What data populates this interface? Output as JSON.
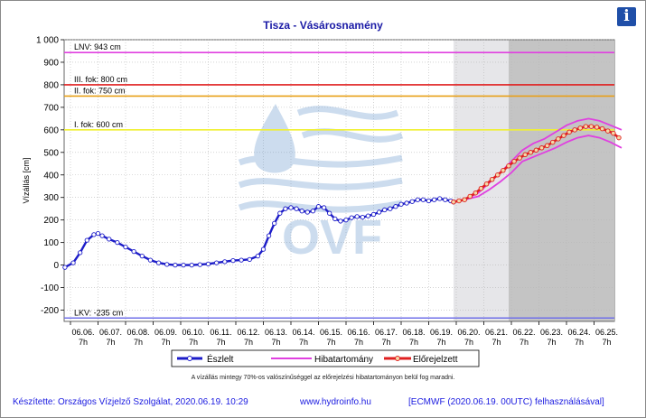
{
  "header": {
    "title": "Tisza - Vásárosnamény",
    "info_label": "i"
  },
  "footer": {
    "author": "Készítette: Országos Vízjelző Szolgálat, 2020.06.19. 10:29",
    "url": "www.hydroinfo.hu",
    "source": "[ECMWF (2020.06.19. 00UTC) felhasználásával]"
  },
  "chart_data": {
    "type": "line",
    "title": "Tisza - Vásárosnamény",
    "ylabel": "Vízállás [cm]",
    "ylim": [
      -250,
      1000
    ],
    "yticks": [
      "1 000",
      "900",
      "800",
      "700",
      "600",
      "500",
      "400",
      "300",
      "200",
      "100",
      "0",
      "-100",
      "-200"
    ],
    "ytick_values": [
      1000,
      900,
      800,
      700,
      600,
      500,
      400,
      300,
      200,
      100,
      0,
      -100,
      -200
    ],
    "xlim": [
      0,
      20
    ],
    "xticks": [
      {
        "date": "06.06.",
        "hour": "7h"
      },
      {
        "date": "06.07.",
        "hour": "7h"
      },
      {
        "date": "06.08.",
        "hour": "7h"
      },
      {
        "date": "06.09.",
        "hour": "7h"
      },
      {
        "date": "06.10.",
        "hour": "7h"
      },
      {
        "date": "06.11.",
        "hour": "7h"
      },
      {
        "date": "06.12.",
        "hour": "7h"
      },
      {
        "date": "06.13.",
        "hour": "7h"
      },
      {
        "date": "06.14.",
        "hour": "7h"
      },
      {
        "date": "06.15.",
        "hour": "7h"
      },
      {
        "date": "06.16.",
        "hour": "7h"
      },
      {
        "date": "06.17.",
        "hour": "7h"
      },
      {
        "date": "06.18.",
        "hour": "7h"
      },
      {
        "date": "06.19.",
        "hour": "7h"
      },
      {
        "date": "06.20.",
        "hour": "7h"
      },
      {
        "date": "06.21.",
        "hour": "7h"
      },
      {
        "date": "06.22.",
        "hour": "7h"
      },
      {
        "date": "06.23.",
        "hour": "7h"
      },
      {
        "date": "06.24.",
        "hour": "7h"
      },
      {
        "date": "06.25.",
        "hour": "7h"
      }
    ],
    "shaded_regions": [
      {
        "from": 13.9,
        "to": 15.9,
        "color": "#e6e6e9"
      },
      {
        "from": 15.9,
        "to": 20.3,
        "color": "#c4c4c4"
      }
    ],
    "thresholds": [
      {
        "label": "LNV: 943 cm",
        "value": 943,
        "color": "#e040e0"
      },
      {
        "label": "III. fok: 800 cm",
        "value": 800,
        "color": "#e02020"
      },
      {
        "label": "II. fok: 750 cm",
        "value": 750,
        "color": "#e8a018"
      },
      {
        "label": "I. fok: 600 cm",
        "value": 600,
        "color": "#f0f030"
      },
      {
        "label": "LKV: -235 cm",
        "value": -235,
        "color": "#7070e8"
      }
    ],
    "series": [
      {
        "name": "Észlelt",
        "color": "#1c1cc8",
        "x": [
          -0.2,
          0.1,
          0.35,
          0.6,
          0.85,
          1.0,
          1.15,
          1.4,
          1.7,
          2.0,
          2.3,
          2.6,
          2.9,
          3.2,
          3.5,
          3.8,
          4.1,
          4.4,
          4.7,
          5.0,
          5.3,
          5.6,
          5.9,
          6.2,
          6.5,
          6.8,
          7.0,
          7.2,
          7.4,
          7.6,
          7.8,
          8.0,
          8.2,
          8.4,
          8.6,
          8.8,
          9.0,
          9.2,
          9.4,
          9.6,
          9.8,
          10.0,
          10.2,
          10.4,
          10.6,
          10.8,
          11.0,
          11.2,
          11.4,
          11.6,
          11.8,
          12.0,
          12.2,
          12.4,
          12.6,
          12.8,
          13.0,
          13.2,
          13.4,
          13.6,
          13.8,
          13.9
        ],
        "y": [
          -10,
          10,
          55,
          110,
          135,
          140,
          130,
          115,
          100,
          80,
          60,
          40,
          22,
          10,
          3,
          0,
          0,
          0,
          2,
          5,
          10,
          15,
          20,
          22,
          25,
          40,
          70,
          130,
          185,
          230,
          250,
          255,
          250,
          240,
          235,
          240,
          260,
          255,
          230,
          205,
          195,
          200,
          210,
          215,
          212,
          218,
          225,
          235,
          245,
          250,
          260,
          270,
          275,
          282,
          290,
          290,
          285,
          290,
          295,
          290,
          285,
          280
        ]
      },
      {
        "name": "Hibatartomány",
        "color": "#e040e0",
        "x": [
          13.9,
          14.3,
          14.8,
          15.2,
          15.6,
          16.0,
          16.4,
          16.8,
          17.2,
          17.6,
          18.0,
          18.4,
          18.8,
          19.2,
          19.6,
          20.0
        ],
        "y_upper": [
          282,
          290,
          320,
          365,
          410,
          460,
          510,
          540,
          560,
          590,
          620,
          640,
          650,
          640,
          620,
          600
        ],
        "y_lower": [
          282,
          290,
          305,
          335,
          370,
          410,
          460,
          480,
          500,
          520,
          545,
          565,
          575,
          565,
          545,
          520
        ]
      },
      {
        "name": "Előrejelzett",
        "color": "#e02020",
        "x": [
          13.9,
          14.1,
          14.3,
          14.5,
          14.7,
          14.9,
          15.1,
          15.3,
          15.5,
          15.7,
          15.9,
          16.1,
          16.3,
          16.5,
          16.7,
          16.9,
          17.1,
          17.3,
          17.5,
          17.7,
          17.9,
          18.1,
          18.3,
          18.5,
          18.7,
          18.9,
          19.1,
          19.3,
          19.5,
          19.7,
          19.9
        ],
        "y": [
          280,
          285,
          290,
          305,
          320,
          340,
          360,
          380,
          400,
          420,
          440,
          460,
          475,
          490,
          500,
          510,
          520,
          530,
          545,
          560,
          575,
          590,
          600,
          608,
          615,
          615,
          612,
          605,
          595,
          585,
          565
        ]
      }
    ],
    "legend": {
      "position": "bottom",
      "items": [
        "Észlelt",
        "Hibatartomány",
        "Előrejelzett"
      ]
    },
    "annotation": "A vízállás mintegy 70%-os valószínűséggel az előrejelzési hibatartományon belül fog maradni.",
    "watermark": "OVF"
  }
}
